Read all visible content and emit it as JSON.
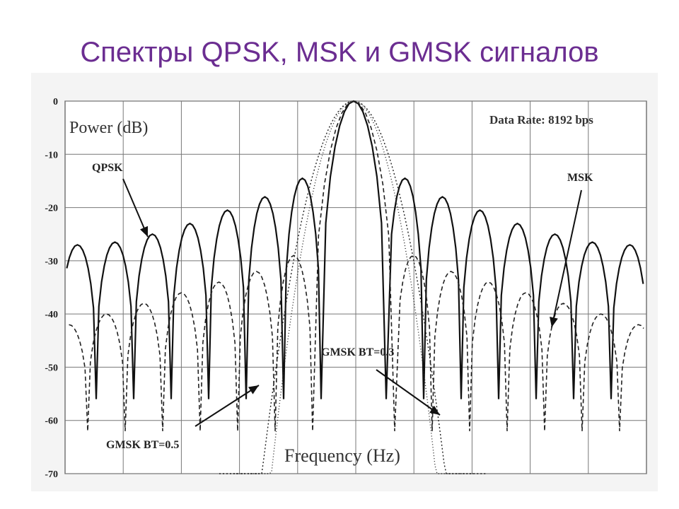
{
  "slide": {
    "title": "Спектры  QPSK, MSK и GMSK сигналов"
  },
  "chart_data": {
    "type": "line",
    "title": "",
    "xlabel": "Frequency (Hz)",
    "ylabel": "Power (dB)",
    "ylim": [
      -70,
      0
    ],
    "y_ticks": [
      0,
      -10,
      -20,
      -30,
      -40,
      -50,
      -60,
      -70
    ],
    "grid": true,
    "annotations": {
      "data_rate": "Data Rate: 8192 bps",
      "qpsk": "QPSK",
      "msk": "MSK",
      "gmsk_03": "GMSK BT=0.3",
      "gmsk_05": "GMSK BT=0.5"
    },
    "series": [
      {
        "name": "QPSK",
        "description_peaks_db": [
          -27,
          -26.5,
          -25,
          -23,
          -20.5,
          -18,
          -14.5,
          0,
          -14.5,
          -18,
          -20.5,
          -23,
          -25,
          -26.5,
          -27
        ]
      },
      {
        "name": "MSK",
        "description_peaks_db": [
          -42,
          -40,
          -38,
          -36,
          -34,
          -32,
          -29,
          0,
          -29,
          -32,
          -34,
          -36,
          -38,
          -40,
          -42
        ]
      },
      {
        "name": "GMSK BT=0.5",
        "edge_db": -70,
        "peak_db": 0
      },
      {
        "name": "GMSK BT=0.3",
        "edge_db": -70,
        "peak_db": 0
      }
    ]
  }
}
